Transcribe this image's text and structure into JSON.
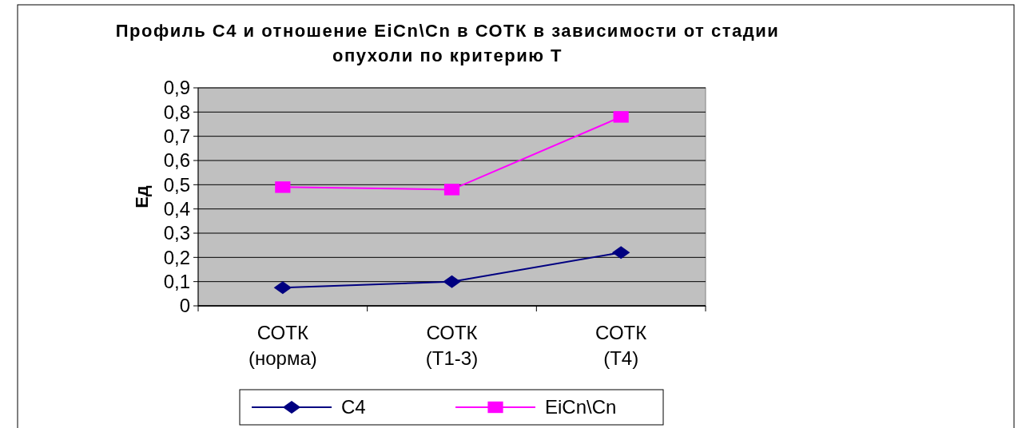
{
  "chart_data": {
    "type": "line",
    "title": "Профиль С4 и отношение EiCn\\Cn в СОТК в зависимости от стадии опухоли по критерию Т",
    "ylabel": "Ед",
    "categories": [
      "СОТК (норма)",
      "СОТК (Т1-3)",
      "СОТК (Т4)"
    ],
    "series": [
      {
        "name": "С4",
        "color": "#000080",
        "marker": "diamond",
        "values": [
          0.075,
          0.1,
          0.22
        ]
      },
      {
        "name": "EiCn\\Cn",
        "color": "#ff00ff",
        "marker": "square",
        "values": [
          0.49,
          0.48,
          0.78
        ]
      }
    ],
    "ylim": [
      0,
      0.9
    ],
    "yticks": [
      {
        "value": 0,
        "label": "0"
      },
      {
        "value": 0.1,
        "label": "0,1"
      },
      {
        "value": 0.2,
        "label": "0,2"
      },
      {
        "value": 0.3,
        "label": "0,3"
      },
      {
        "value": 0.4,
        "label": "0,4"
      },
      {
        "value": 0.5,
        "label": "0,5"
      },
      {
        "value": 0.6,
        "label": "0,6"
      },
      {
        "value": 0.7,
        "label": "0,7"
      },
      {
        "value": 0.8,
        "label": "0,8"
      },
      {
        "value": 0.9,
        "label": "0,9"
      }
    ],
    "grid": "y",
    "legend": "bottom",
    "line_style": "solid"
  }
}
